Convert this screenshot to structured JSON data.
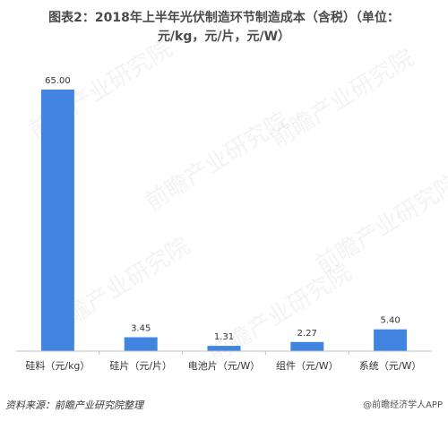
{
  "header": {
    "title_line1": "图表2：2018年上半年光伏制造环节制造成本（含税）（单位：",
    "title_line2": "元/kg，元/片，元/W）"
  },
  "watermark": {
    "text": "前瞻产业研究院"
  },
  "footer": {
    "source": "资料来源：前瞻产业研究院整理",
    "credit": "@前瞻经济学人APP"
  },
  "colors": {
    "bar": "#4185e0",
    "axis": "#bfbfbf",
    "text": "#333333"
  },
  "chart_data": {
    "type": "bar",
    "title": "图表2：2018年上半年光伏制造环节制造成本（含税）（单位：元/kg，元/片，元/W）",
    "categories": [
      "硅料（元/kg）",
      "硅片（元/片）",
      "电池片（元/W）",
      "组件（元/W）",
      "系统（元/W）"
    ],
    "values": [
      65.0,
      3.45,
      1.31,
      2.27,
      5.4
    ],
    "data_labels": [
      "65.00",
      "3.45",
      "1.31",
      "2.27",
      "5.40"
    ],
    "ylim": [
      0,
      65
    ],
    "grid": false,
    "legend": "none"
  }
}
